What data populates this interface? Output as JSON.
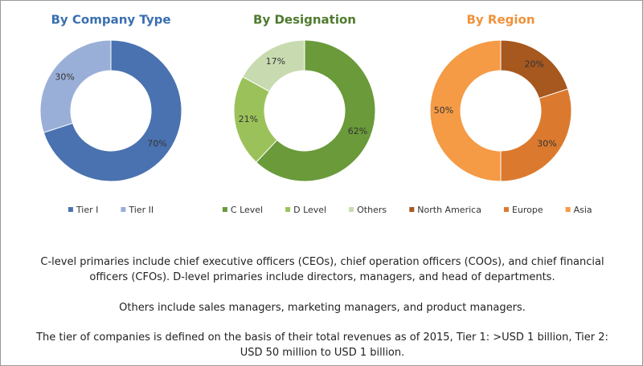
{
  "chart_data": [
    {
      "type": "pie",
      "title": "By Company Type",
      "categories": [
        "Tier I",
        "Tier II"
      ],
      "values": [
        70,
        30
      ],
      "value_labels": [
        "70%",
        "30%"
      ],
      "colors": [
        "#4a72b0",
        "#9aafd8"
      ],
      "title_color": "#3a6fb0"
    },
    {
      "type": "pie",
      "title": "By Designation",
      "categories": [
        "C Level",
        "D Level",
        "Others"
      ],
      "values": [
        62,
        21,
        17
      ],
      "value_labels": [
        "62%",
        "21%",
        "17%"
      ],
      "colors": [
        "#6a9a3a",
        "#9bc25a",
        "#c8dbb0"
      ],
      "title_color": "#4f7a2e"
    },
    {
      "type": "pie",
      "title": "By Region",
      "categories": [
        "North America",
        "Europe",
        "Asia"
      ],
      "values": [
        20,
        30,
        50
      ],
      "value_labels": [
        "20%",
        "30%",
        "50%"
      ],
      "colors": [
        "#a6581f",
        "#db7a2e",
        "#f59a45"
      ],
      "title_color": "#f0913a"
    }
  ],
  "notes": [
    "C-level primaries include chief executive officers (CEOs), chief operation officers (COOs), and chief financial officers (CFOs). D-level primaries include directors, managers, and head of departments.",
    "Others include sales managers, marketing managers, and product managers.",
    "The tier of companies is defined on the basis of their total revenues as of 2015, Tier 1: >USD 1 billion, Tier 2: USD 50 million to USD 1 billion."
  ]
}
